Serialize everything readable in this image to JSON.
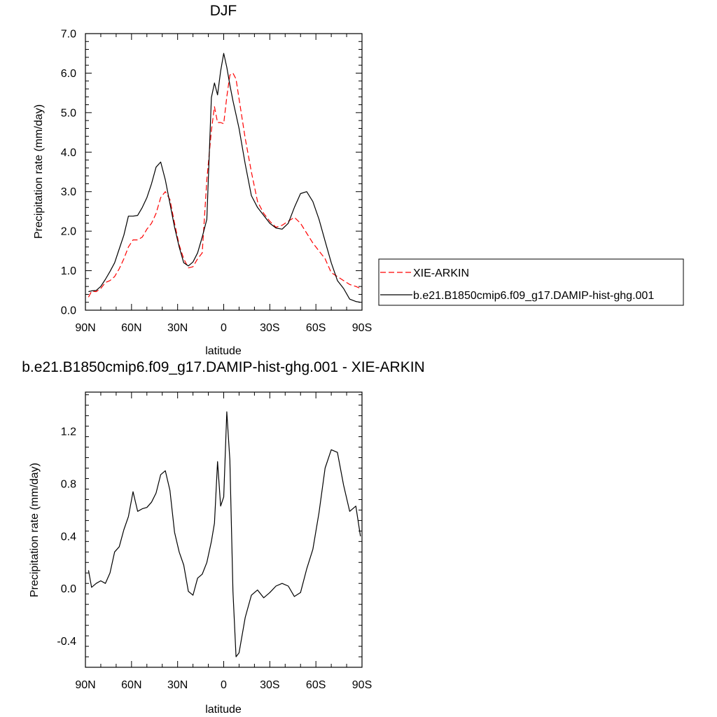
{
  "chart_data": [
    {
      "type": "line",
      "title": "DJF",
      "xlabel": "latitude",
      "ylabel": "Precipitation rate (mm/day)",
      "xlim": [
        90,
        -90
      ],
      "ylim": [
        0,
        7
      ],
      "xticks": [
        90,
        60,
        30,
        0,
        -30,
        -60,
        -90
      ],
      "xtick_labels": [
        "90N",
        "60N",
        "30N",
        "0",
        "30S",
        "60S",
        "90S"
      ],
      "yticks": [
        0,
        1,
        2,
        3,
        4,
        5,
        6,
        7
      ],
      "ytick_labels": [
        "0.0",
        "1.0",
        "2.0",
        "3.0",
        "4.0",
        "5.0",
        "6.0",
        "7.0"
      ],
      "grid": false,
      "legend_position": "right",
      "series": [
        {
          "name": "XIE-ARKIN",
          "color": "#ff0000",
          "dash": "dashed",
          "x": [
            88,
            86,
            83,
            80,
            77,
            74,
            71,
            68,
            65,
            62,
            59,
            56,
            53,
            50,
            47,
            44,
            41,
            38,
            35,
            32,
            29,
            26,
            23,
            20,
            17,
            14,
            11,
            8,
            6,
            4,
            2,
            0,
            -2,
            -4,
            -6,
            -8,
            -10,
            -14,
            -18,
            -22,
            -26,
            -30,
            -34,
            -38,
            -42,
            -46,
            -50,
            -54,
            -58,
            -62,
            -66,
            -70,
            -74,
            -78,
            -82,
            -86,
            -89
          ],
          "y": [
            0.33,
            0.48,
            0.47,
            0.55,
            0.7,
            0.75,
            0.85,
            1.05,
            1.3,
            1.6,
            1.78,
            1.78,
            1.85,
            2.05,
            2.2,
            2.45,
            2.85,
            3.0,
            2.8,
            2.2,
            1.65,
            1.3,
            1.07,
            1.1,
            1.3,
            1.45,
            3.3,
            4.55,
            5.15,
            4.75,
            4.75,
            4.72,
            5.4,
            5.95,
            6.0,
            5.85,
            5.35,
            4.35,
            3.5,
            2.75,
            2.45,
            2.25,
            2.1,
            2.15,
            2.25,
            2.35,
            2.2,
            1.95,
            1.7,
            1.5,
            1.3,
            0.95,
            0.85,
            0.75,
            0.65,
            0.6,
            0.55
          ]
        },
        {
          "name": "b.e21.B1850cmip6.f09_g17.DAMIP-hist-ghg.001",
          "color": "#000000",
          "dash": "solid",
          "x": [
            88,
            86,
            83,
            80,
            77,
            74,
            71,
            68,
            65,
            62,
            59,
            56,
            53,
            50,
            47,
            44,
            41,
            38,
            35,
            32,
            29,
            26,
            23,
            20,
            17,
            14,
            11,
            8,
            6,
            4,
            2,
            0,
            -2,
            -4,
            -6,
            -8,
            -10,
            -14,
            -18,
            -22,
            -26,
            -30,
            -34,
            -38,
            -42,
            -46,
            -50,
            -54,
            -58,
            -62,
            -66,
            -70,
            -74,
            -78,
            -82,
            -86,
            -89
          ],
          "y": [
            0.47,
            0.49,
            0.5,
            0.6,
            0.78,
            0.98,
            1.2,
            1.55,
            1.9,
            2.38,
            2.38,
            2.4,
            2.6,
            2.85,
            3.2,
            3.62,
            3.75,
            3.3,
            2.7,
            2.1,
            1.6,
            1.2,
            1.12,
            1.22,
            1.45,
            1.85,
            2.3,
            5.38,
            5.75,
            5.45,
            6.05,
            6.5,
            6.15,
            5.7,
            5.3,
            4.95,
            4.6,
            3.7,
            2.9,
            2.6,
            2.4,
            2.2,
            2.08,
            2.05,
            2.2,
            2.6,
            2.95,
            3.0,
            2.75,
            2.3,
            1.75,
            1.2,
            0.75,
            0.55,
            0.28,
            0.22,
            0.2
          ]
        }
      ]
    },
    {
      "type": "line",
      "title": "b.e21.B1850cmip6.f09_g17.DAMIP-hist-ghg.001 - XIE-ARKIN",
      "xlabel": "latitude",
      "ylabel": "Precipitation rate (mm/day)",
      "xlim": [
        90,
        -90
      ],
      "ylim": [
        -0.6,
        1.5
      ],
      "xticks": [
        90,
        60,
        30,
        0,
        -30,
        -60,
        -90
      ],
      "xtick_labels": [
        "90N",
        "60N",
        "30N",
        "0",
        "30S",
        "60S",
        "90S"
      ],
      "yticks": [
        -0.4,
        0.0,
        0.4,
        0.8,
        1.2
      ],
      "ytick_labels": [
        "-0.4",
        "0.0",
        "0.4",
        "0.8",
        "1.2"
      ],
      "grid": false,
      "series": [
        {
          "color": "#000000",
          "dash": "solid",
          "x": [
            88,
            86,
            83,
            80,
            77,
            74,
            71,
            68,
            65,
            62,
            59,
            56,
            53,
            50,
            47,
            44,
            41,
            38,
            35,
            32,
            29,
            26,
            23,
            20,
            17,
            14,
            11,
            8,
            6,
            4,
            2,
            0,
            -2,
            -4,
            -6,
            -8,
            -10,
            -14,
            -18,
            -22,
            -26,
            -30,
            -34,
            -38,
            -42,
            -46,
            -50,
            -54,
            -58,
            -62,
            -66,
            -70,
            -74,
            -78,
            -82,
            -86,
            -89
          ],
          "y": [
            0.14,
            0.01,
            0.04,
            0.06,
            0.04,
            0.12,
            0.28,
            0.32,
            0.45,
            0.55,
            0.74,
            0.59,
            0.61,
            0.62,
            0.66,
            0.73,
            0.87,
            0.9,
            0.75,
            0.43,
            0.28,
            0.18,
            -0.02,
            -0.05,
            0.08,
            0.11,
            0.2,
            0.36,
            0.5,
            0.97,
            0.63,
            0.7,
            1.35,
            0.98,
            -0.02,
            -0.52,
            -0.49,
            -0.22,
            -0.05,
            -0.01,
            -0.07,
            -0.03,
            0.02,
            0.04,
            0.02,
            -0.06,
            -0.03,
            0.15,
            0.3,
            0.58,
            0.92,
            1.06,
            1.04,
            0.79,
            0.59,
            0.63,
            0.4
          ]
        }
      ]
    }
  ],
  "legend": [
    {
      "label": "XIE-ARKIN",
      "color": "#ff0000",
      "dash": "dashed"
    },
    {
      "label": "b.e21.B1850cmip6.f09_g17.DAMIP-hist-ghg.001",
      "color": "#000000",
      "dash": "solid"
    }
  ]
}
